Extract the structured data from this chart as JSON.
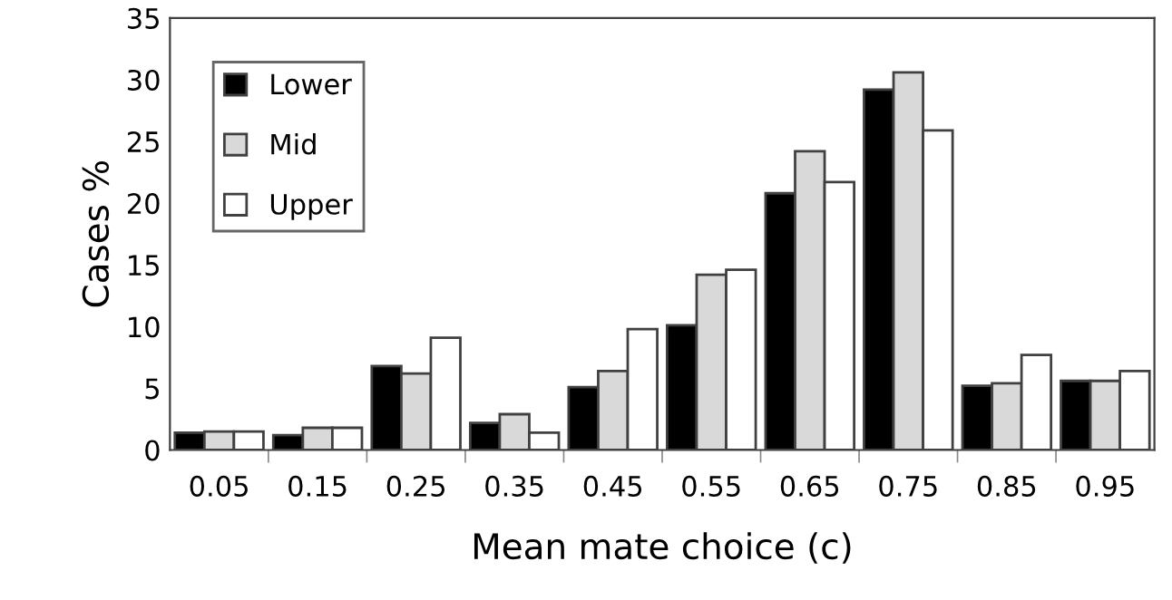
{
  "chart_data": {
    "type": "bar",
    "xlabel": "Mean mate choice (c)",
    "ylabel": "Cases %",
    "categories": [
      "0.05",
      "0.15",
      "0.25",
      "0.35",
      "0.45",
      "0.55",
      "0.65",
      "0.75",
      "0.85",
      "0.95"
    ],
    "series": [
      {
        "name": "Lower",
        "color": "#000000",
        "values": [
          1.4,
          1.2,
          6.8,
          2.2,
          5.1,
          10.1,
          20.8,
          29.2,
          5.2,
          5.6
        ]
      },
      {
        "name": "Mid",
        "color": "#d9d9d9",
        "values": [
          1.5,
          1.8,
          6.2,
          2.9,
          6.4,
          14.2,
          24.2,
          30.6,
          5.4,
          5.6
        ]
      },
      {
        "name": "Upper",
        "color": "#ffffff",
        "values": [
          1.5,
          1.8,
          9.1,
          1.4,
          9.8,
          14.6,
          21.7,
          25.9,
          7.7,
          6.4
        ]
      }
    ],
    "ylim": [
      0,
      35
    ],
    "yticks": [
      0,
      5,
      10,
      15,
      20,
      25,
      30,
      35
    ],
    "grid": false,
    "legend": "top left"
  }
}
